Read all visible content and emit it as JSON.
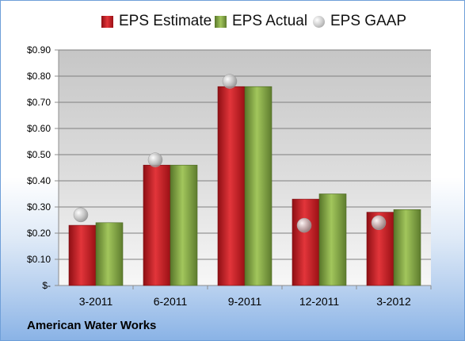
{
  "chart_data": {
    "type": "bar",
    "categories": [
      "3-2011",
      "6-2011",
      "9-2011",
      "12-2011",
      "3-2012"
    ],
    "series": [
      {
        "name": "EPS Estimate",
        "kind": "bar",
        "values": [
          0.23,
          0.46,
          0.76,
          0.33,
          0.28
        ],
        "color": "#c8161d"
      },
      {
        "name": "EPS Actual",
        "kind": "bar",
        "values": [
          0.24,
          0.46,
          0.76,
          0.35,
          0.29
        ],
        "color": "#7ea43b"
      },
      {
        "name": "EPS GAAP",
        "kind": "marker",
        "values": [
          0.27,
          0.48,
          0.78,
          0.23,
          0.24
        ],
        "color": "#b4b4b4"
      }
    ],
    "ylim": [
      0,
      0.9
    ],
    "yticks": [
      0,
      0.1,
      0.2,
      0.3,
      0.4,
      0.5,
      0.6,
      0.7,
      0.8,
      0.9
    ],
    "ytick_labels": [
      "$-",
      "$0.10",
      "$0.20",
      "$0.30",
      "$0.40",
      "$0.50",
      "$0.60",
      "$0.70",
      "$0.80",
      "$0.90"
    ],
    "grid": true,
    "legend_position": "top"
  },
  "company_name": "American Water Works"
}
